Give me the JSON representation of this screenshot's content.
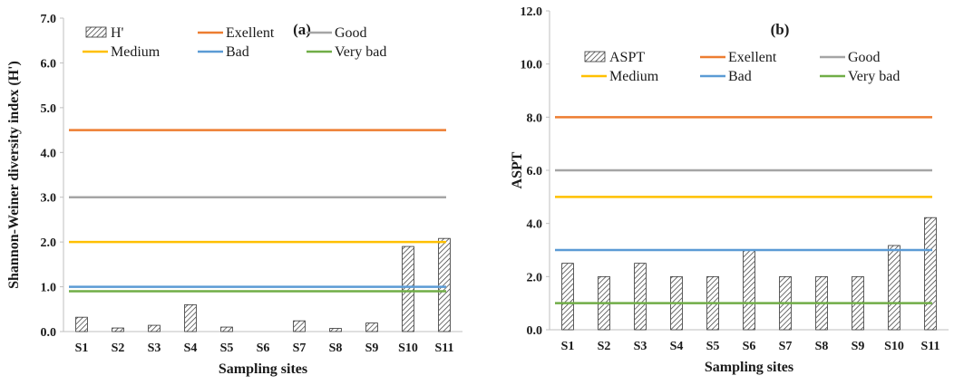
{
  "chart_data": [
    {
      "type": "bar",
      "panel_label": "(a)",
      "xlabel": "Sampling sites",
      "ylabel": "Shannon-Weiner diversity index (H')",
      "ylim": [
        0,
        7
      ],
      "ytick_step": 1,
      "ytick_decimals": 1,
      "grid": false,
      "categories": [
        "S1",
        "S2",
        "S3",
        "S4",
        "S5",
        "S6",
        "S7",
        "S8",
        "S9",
        "S10",
        "S11"
      ],
      "series": [
        {
          "name": "H'",
          "type": "bar",
          "pattern": "hatch",
          "values": [
            0.32,
            0.08,
            0.14,
            0.6,
            0.1,
            0.0,
            0.24,
            0.07,
            0.19,
            1.9,
            2.08
          ]
        }
      ],
      "reference_lines": [
        {
          "name": "Exellent",
          "value": 4.5,
          "color": "#ED7D31"
        },
        {
          "name": "Good",
          "value": 3.0,
          "color": "#A5A5A5"
        },
        {
          "name": "Medium",
          "value": 2.0,
          "color": "#FFC000"
        },
        {
          "name": "Bad",
          "value": 1.0,
          "color": "#5B9BD5"
        },
        {
          "name": "Very bad",
          "value": 0.9,
          "color": "#70AD47"
        }
      ],
      "legend_placement": "top-left"
    },
    {
      "type": "bar",
      "panel_label": "(b)",
      "xlabel": "Sampling sites",
      "ylabel": "ASPT",
      "ylim": [
        0,
        12
      ],
      "ytick_step": 2,
      "ytick_decimals": 1,
      "grid": false,
      "categories": [
        "S1",
        "S2",
        "S3",
        "S4",
        "S5",
        "S6",
        "S7",
        "S8",
        "S9",
        "S10",
        "S11"
      ],
      "series": [
        {
          "name": "ASPT",
          "type": "bar",
          "pattern": "hatch",
          "values": [
            2.5,
            2.0,
            2.5,
            2.0,
            2.0,
            3.0,
            2.0,
            2.0,
            2.0,
            3.17,
            4.22
          ]
        }
      ],
      "reference_lines": [
        {
          "name": "Exellent",
          "value": 8.0,
          "color": "#ED7D31"
        },
        {
          "name": "Good",
          "value": 6.0,
          "color": "#A5A5A5"
        },
        {
          "name": "Medium",
          "value": 5.0,
          "color": "#FFC000"
        },
        {
          "name": "Bad",
          "value": 3.0,
          "color": "#5B9BD5"
        },
        {
          "name": "Very bad",
          "value": 1.0,
          "color": "#70AD47"
        }
      ],
      "legend_placement": "top-left"
    }
  ]
}
